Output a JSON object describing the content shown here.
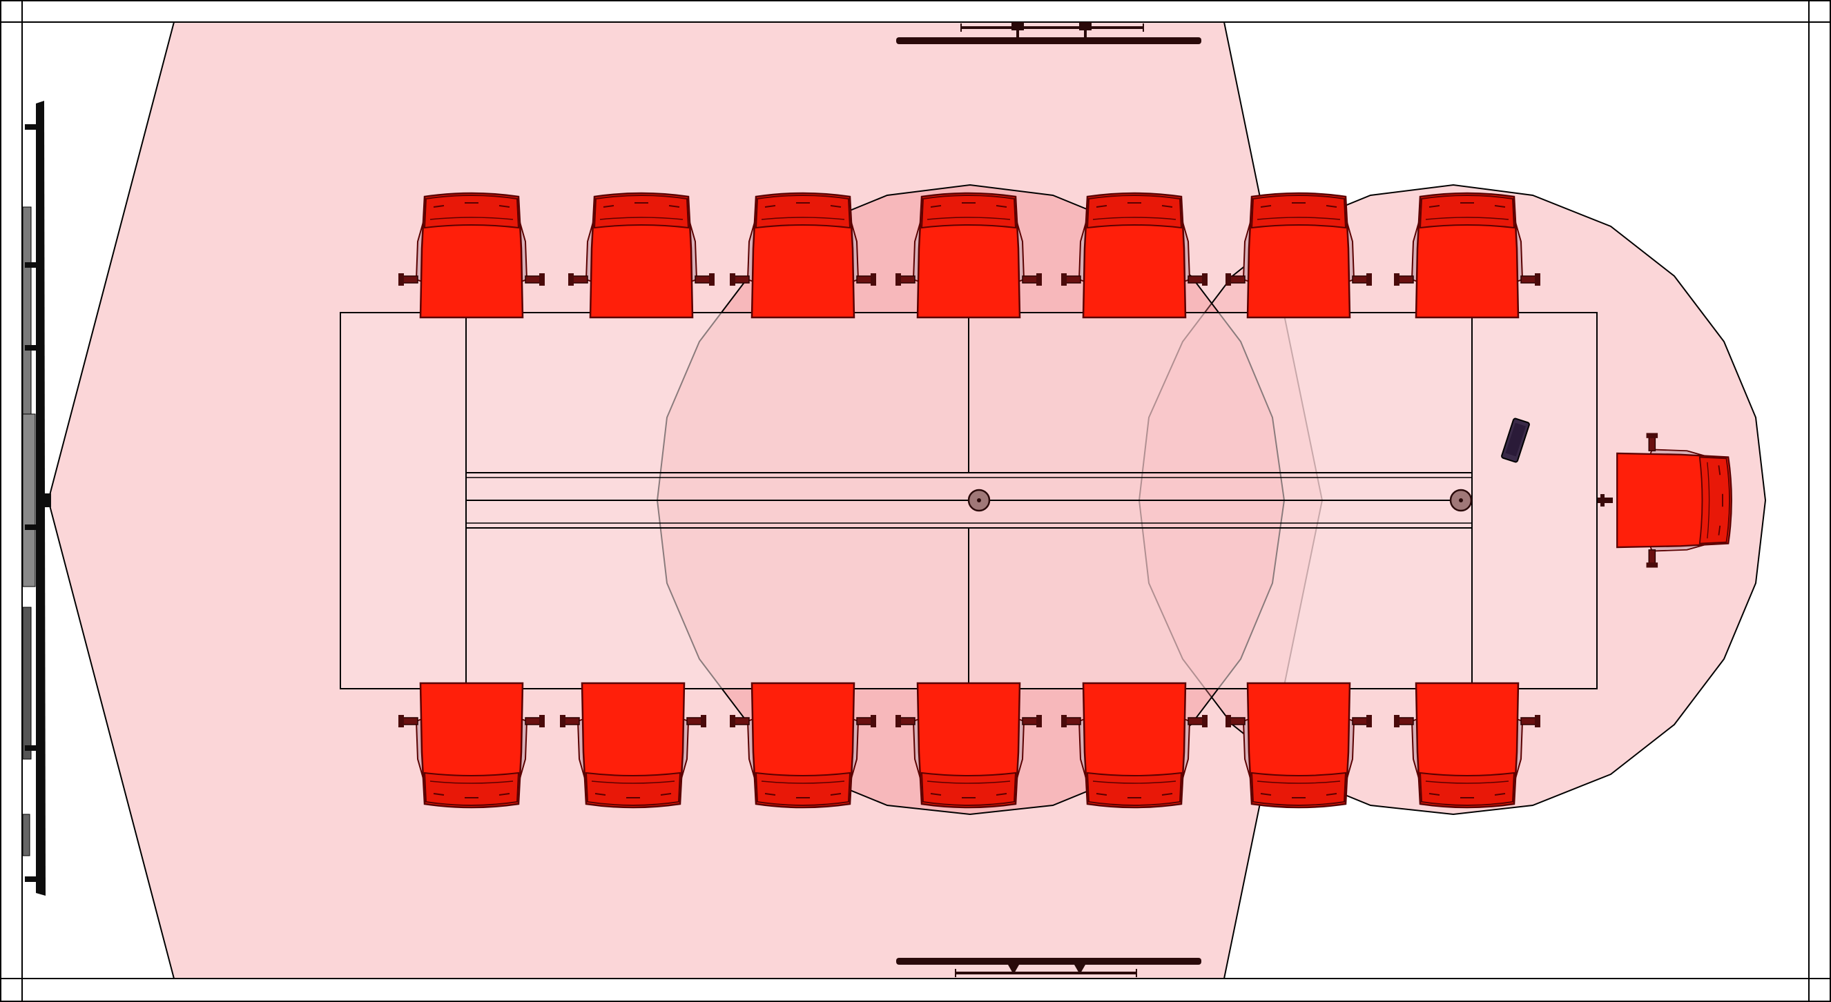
{
  "diagram": {
    "type": "conference-room-floor-plan",
    "colors": {
      "background": "#ffffff",
      "line": "#000000",
      "coverage_fill": "#f8b4b8",
      "mic_pickup_fill": "#f08088",
      "chair_fill": "#ff1f0a",
      "chair_outline": "#5a0000",
      "chair_arm": "#c9a0a8",
      "display": "#0d0d0d",
      "display_mount": "#707070",
      "speaker_bar": "#2a0a0a",
      "mic_puck": "#a07878",
      "controller": "#3a2a48"
    },
    "elements": {
      "display_wall": "display-screen-icon",
      "camera_top": "ceiling-speaker-bar-icon",
      "camera_bottom": "ceiling-speaker-bar-icon",
      "table_mic": "microphone-puck-icon",
      "touch_controller": "touch-controller-icon",
      "chair": "chair-icon"
    },
    "counts": {
      "chairs_top_row": 7,
      "chairs_bottom_row": 7,
      "chairs_end": 1,
      "table_microphones": 2
    }
  }
}
